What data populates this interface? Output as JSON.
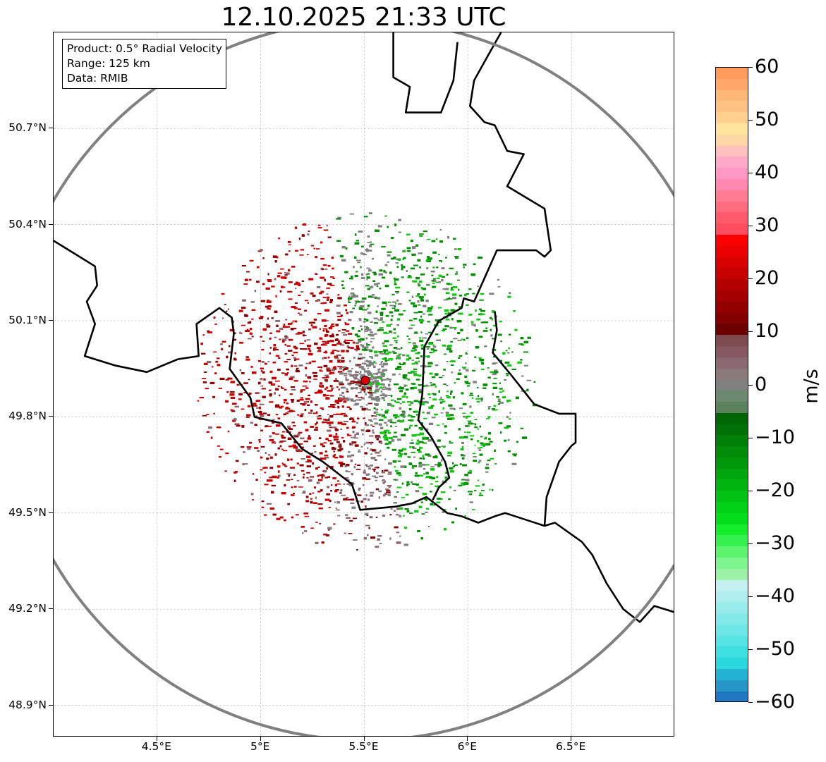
{
  "title": "12.10.2025 21:33 UTC",
  "info_box": {
    "product": "Product: 0.5° Radial Velocity",
    "range": "Range: 125 km",
    "data": "Data: RMIB"
  },
  "map": {
    "lon_range": [
      4.0,
      7.0
    ],
    "lat_range": [
      48.8,
      51.0
    ],
    "radar_site": {
      "lon": 5.505,
      "lat": 49.914
    },
    "range_km": 125,
    "lat_ticks": [
      {
        "value": 50.7,
        "label": "50.7°N"
      },
      {
        "value": 50.4,
        "label": "50.4°N"
      },
      {
        "value": 50.1,
        "label": "50.1°N"
      },
      {
        "value": 49.8,
        "label": "49.8°N"
      },
      {
        "value": 49.5,
        "label": "49.5°N"
      },
      {
        "value": 49.2,
        "label": "49.2°N"
      },
      {
        "value": 48.9,
        "label": "48.9°N"
      }
    ],
    "lon_ticks": [
      {
        "value": 4.5,
        "label": "4.5°E"
      },
      {
        "value": 5.0,
        "label": "5°E"
      },
      {
        "value": 5.5,
        "label": "5.5°E"
      },
      {
        "value": 6.0,
        "label": "6°E"
      },
      {
        "value": 6.5,
        "label": "6.5°E"
      }
    ],
    "borders": [
      [
        [
          4.0,
          50.35
        ],
        [
          4.1,
          50.31
        ],
        [
          4.2,
          50.27
        ],
        [
          4.21,
          50.21
        ],
        [
          4.16,
          50.16
        ],
        [
          4.2,
          50.09
        ],
        [
          4.15,
          49.99
        ],
        [
          4.3,
          49.96
        ],
        [
          4.45,
          49.94
        ],
        [
          4.6,
          49.98
        ],
        [
          4.7,
          49.99
        ],
        [
          4.69,
          50.09
        ],
        [
          4.8,
          50.14
        ],
        [
          4.86,
          50.11
        ],
        [
          4.87,
          50.06
        ],
        [
          4.85,
          49.95
        ],
        [
          4.95,
          49.86
        ],
        [
          4.97,
          49.8
        ],
        [
          5.1,
          49.78
        ],
        [
          5.2,
          49.7
        ],
        [
          5.3,
          49.66
        ],
        [
          5.32,
          49.65
        ],
        [
          5.44,
          49.59
        ],
        [
          5.48,
          49.51
        ],
        [
          5.65,
          49.52
        ],
        [
          5.73,
          49.53
        ],
        [
          5.8,
          49.55
        ],
        [
          5.9,
          49.5
        ],
        [
          5.97,
          49.49
        ],
        [
          6.05,
          49.47
        ],
        [
          6.13,
          49.49
        ],
        [
          6.18,
          49.5
        ],
        [
          6.37,
          49.46
        ],
        [
          6.42,
          49.47
        ],
        [
          6.55,
          49.41
        ],
        [
          6.6,
          49.37
        ],
        [
          6.67,
          49.28
        ],
        [
          6.75,
          49.2
        ],
        [
          6.83,
          49.16
        ],
        [
          6.9,
          49.21
        ],
        [
          7.0,
          49.19
        ]
      ],
      [
        [
          5.95,
          50.97
        ],
        [
          5.93,
          50.85
        ],
        [
          5.87,
          50.75
        ],
        [
          5.7,
          50.75
        ],
        [
          5.72,
          50.83
        ],
        [
          5.64,
          50.86
        ],
        [
          5.64,
          51.0
        ]
      ],
      [
        [
          6.16,
          51.0
        ],
        [
          6.09,
          50.92
        ],
        [
          6.03,
          50.85
        ],
        [
          6.01,
          50.77
        ],
        [
          6.08,
          50.72
        ],
        [
          6.13,
          50.71
        ],
        [
          6.19,
          50.63
        ],
        [
          6.27,
          50.62
        ],
        [
          6.19,
          50.52
        ],
        [
          6.37,
          50.45
        ],
        [
          6.4,
          50.32
        ],
        [
          6.37,
          50.3
        ],
        [
          6.33,
          50.32
        ],
        [
          6.26,
          50.32
        ],
        [
          6.14,
          50.32
        ],
        [
          6.03,
          50.16
        ],
        [
          5.98,
          50.17
        ],
        [
          5.97,
          50.14
        ],
        [
          5.86,
          50.1
        ],
        [
          5.79,
          50.02
        ],
        [
          5.78,
          49.87
        ],
        [
          5.76,
          49.79
        ],
        [
          5.82,
          49.74
        ],
        [
          5.89,
          49.66
        ],
        [
          5.91,
          49.61
        ],
        [
          5.86,
          49.58
        ],
        [
          5.83,
          49.54
        ]
      ],
      [
        [
          6.13,
          50.13
        ],
        [
          6.14,
          50.07
        ],
        [
          6.12,
          50.0
        ],
        [
          6.21,
          49.93
        ],
        [
          6.32,
          49.84
        ],
        [
          6.44,
          49.81
        ],
        [
          6.52,
          49.81
        ],
        [
          6.52,
          49.72
        ],
        [
          6.5,
          49.71
        ],
        [
          6.44,
          49.66
        ],
        [
          6.38,
          49.55
        ],
        [
          6.37,
          49.46
        ]
      ]
    ]
  },
  "colorbar": {
    "label": "m/s",
    "vmin": -60,
    "vmax": 60,
    "ticks": [
      {
        "value": 60,
        "label": "60"
      },
      {
        "value": 50,
        "label": "50"
      },
      {
        "value": 40,
        "label": "40"
      },
      {
        "value": 30,
        "label": "30"
      },
      {
        "value": 20,
        "label": "20"
      },
      {
        "value": 10,
        "label": "10"
      },
      {
        "value": 0,
        "label": "0"
      },
      {
        "value": -10,
        "label": "−10"
      },
      {
        "value": -20,
        "label": "−20"
      },
      {
        "value": -30,
        "label": "−30"
      },
      {
        "value": -40,
        "label": "−40"
      },
      {
        "value": -50,
        "label": "−50"
      },
      {
        "value": -60,
        "label": "−60"
      }
    ],
    "colors": [
      "#1f78c1",
      "#2696c8",
      "#24b2d2",
      "#2ad8dc",
      "#3ddfe0",
      "#55e3e3",
      "#6ee6e6",
      "#83e8e8",
      "#98ebeb",
      "#aeeeee",
      "#c3f0f0",
      "#9bf2a6",
      "#7ef58e",
      "#5cf46e",
      "#35f14d",
      "#14ec2c",
      "#00df1a",
      "#00d116",
      "#00c313",
      "#00b510",
      "#00a60d",
      "#00980a",
      "#008b08",
      "#007f06",
      "#007205",
      "#006604",
      "#5c825d",
      "#6c8a70",
      "#808080",
      "#8a7a7a",
      "#8a6a70",
      "#855862",
      "#7d4a4f",
      "#6b0000",
      "#820000",
      "#930000",
      "#a50000",
      "#b50000",
      "#c70000",
      "#d80000",
      "#eb0000",
      "#fa0000",
      "#ff4c5f",
      "#ff5a6c",
      "#ff6b7f",
      "#ff7c92",
      "#ff88b0",
      "#ff98c2",
      "#ffaac8",
      "#ffbfbf",
      "#ffd7a4",
      "#ffe49e",
      "#ffd090",
      "#ffc283",
      "#ffb777",
      "#ffa86a",
      "#ff9b5d"
    ]
  },
  "echo_palette": {
    "outbound_dark": "#8b0000",
    "outbound": "#c80000",
    "inbound": "#008f00",
    "inbound_light": "#10c810",
    "near_zero_grey": "#808080",
    "mauve": "#8a6a70",
    "radar_marker": "#e00000"
  }
}
